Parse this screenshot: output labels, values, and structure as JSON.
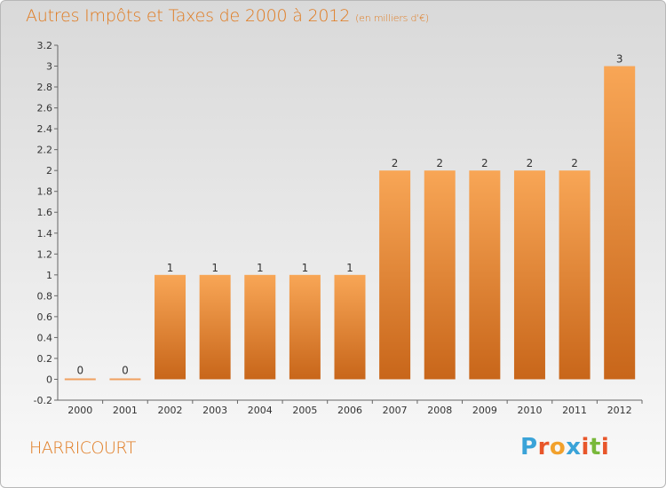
{
  "header": {
    "title": "Autres Impôts et Taxes de 2000 à 2012",
    "unit": "(en milliers d'€)"
  },
  "footer": {
    "commune": "HARRICOURT",
    "logo_text": "Proxiti"
  },
  "colors": {
    "title": "#e07a1f",
    "bar_top": "#f8a656",
    "bar_bottom": "#c8661a",
    "zero_bar": "#f0a060",
    "logo_letters": [
      "#3aa3d8",
      "#e8562a",
      "#f2a12c",
      "#3aa3d8",
      "#e8562a",
      "#79b83a",
      "#e8562a"
    ]
  },
  "chart_data": {
    "type": "bar",
    "title": "Autres Impôts et Taxes de 2000 à 2012",
    "subtitle": "(en milliers d'€)",
    "categories": [
      "2000",
      "2001",
      "2002",
      "2003",
      "2004",
      "2005",
      "2006",
      "2007",
      "2008",
      "2009",
      "2010",
      "2011",
      "2012"
    ],
    "values": [
      0,
      0,
      1,
      1,
      1,
      1,
      1,
      2,
      2,
      2,
      2,
      2,
      3
    ],
    "data_labels": [
      "0",
      "0",
      "1",
      "1",
      "1",
      "1",
      "1",
      "2",
      "2",
      "2",
      "2",
      "2",
      "3"
    ],
    "y_ticks": [
      "-0.2",
      "0",
      "0.2",
      "0.4",
      "0.6",
      "0.8",
      "1",
      "1.2",
      "1.4",
      "1.6",
      "1.8",
      "2",
      "2.2",
      "2.4",
      "2.6",
      "2.8",
      "3",
      "3.2"
    ],
    "ylim": [
      -0.2,
      3.2
    ],
    "grid": false,
    "legend": "none"
  }
}
